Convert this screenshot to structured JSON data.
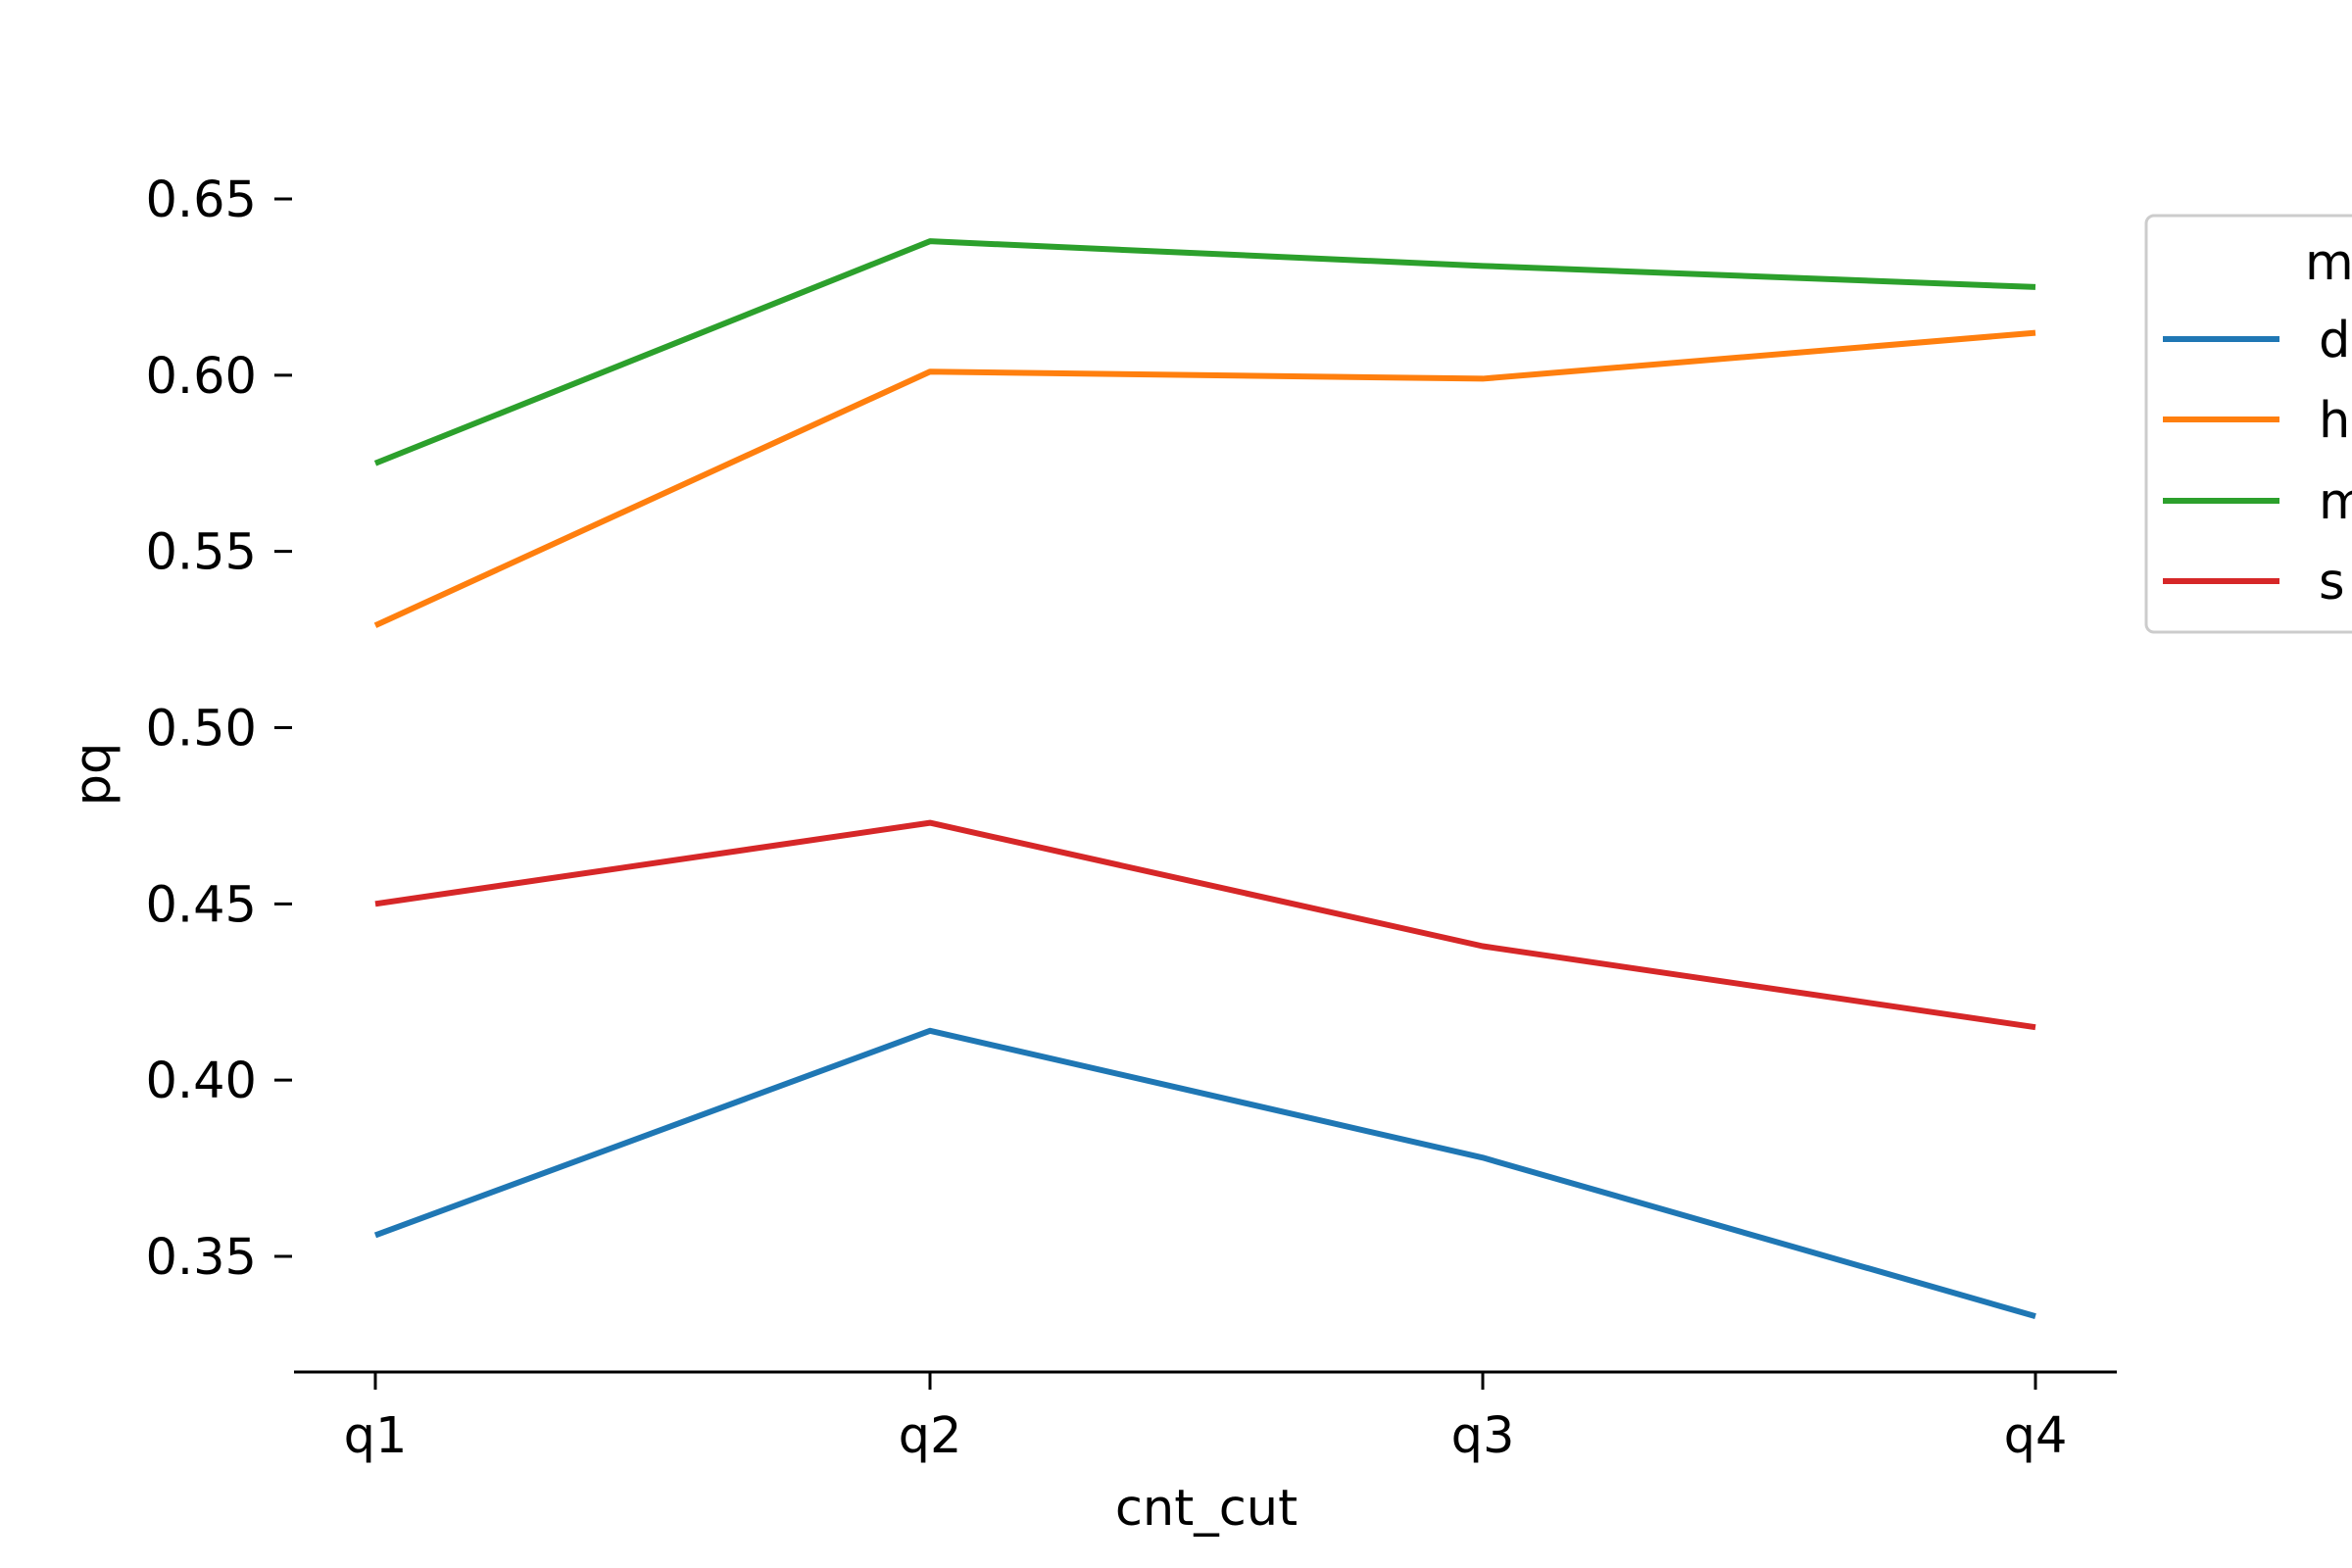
{
  "chart_data": {
    "type": "line",
    "xlabel": "cnt_cut",
    "ylabel": "pq",
    "categories": [
      "q1",
      "q2",
      "q3",
      "q4"
    ],
    "ylim": [
      0.318,
      0.668
    ],
    "yticks": [
      0.35,
      0.4,
      0.45,
      0.5,
      0.55,
      0.6,
      0.65
    ],
    "ytick_labels": [
      "0.35",
      "0.40",
      "0.45",
      "0.50",
      "0.55",
      "0.60",
      "0.65"
    ],
    "grid": false,
    "legend": {
      "title": "m",
      "placement": "right (cropped)",
      "entries": [
        "d",
        "h",
        "m",
        "s"
      ]
    },
    "series": [
      {
        "name": "d",
        "color": "#1f77b4",
        "values": [
          0.356,
          0.414,
          0.378,
          0.333
        ]
      },
      {
        "name": "h",
        "color": "#ff7f0e",
        "values": [
          0.529,
          0.601,
          0.599,
          0.612
        ]
      },
      {
        "name": "m",
        "color": "#2ca02c",
        "values": [
          0.575,
          0.638,
          0.631,
          0.625
        ]
      },
      {
        "name": "s",
        "color": "#d62728",
        "values": [
          0.45,
          0.473,
          0.438,
          0.415
        ]
      }
    ]
  }
}
